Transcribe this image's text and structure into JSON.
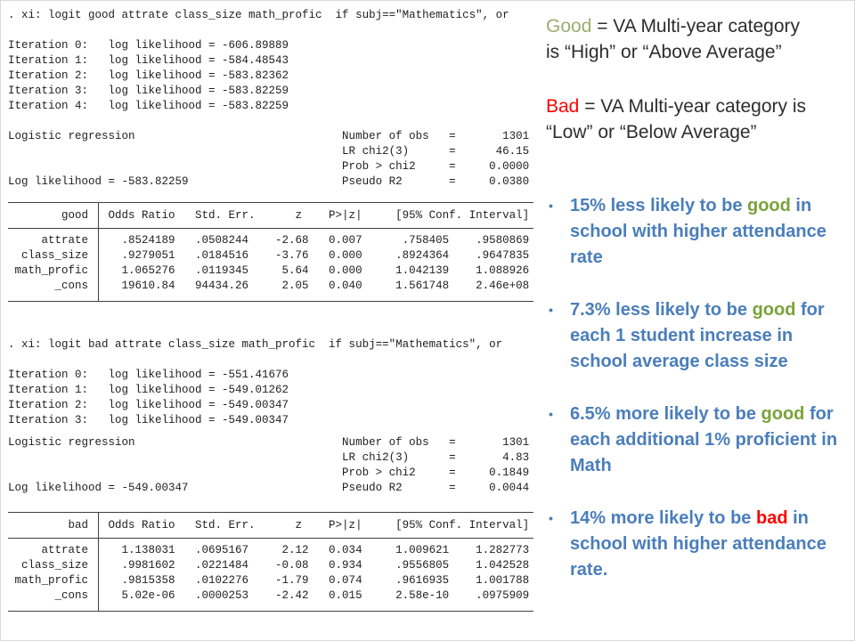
{
  "colors": {
    "blue": "#4a7ebb",
    "green_title": "#9bae6f",
    "green_bullet": "#7aa23a",
    "red": "#fe0000",
    "dark": "#2d2d2d",
    "mono_text": "#1f1f1f"
  },
  "stata": {
    "good_model": {
      "command": ". xi: logit good attrate class_size math_profic  if subj==\"Mathematics\", or",
      "iterations": [
        "Iteration 0:   log likelihood = -606.89889",
        "Iteration 1:   log likelihood = -584.48543",
        "Iteration 2:   log likelihood = -583.82362",
        "Iteration 3:   log likelihood = -583.82259",
        "Iteration 4:   log likelihood = -583.82259"
      ],
      "summary": [
        "Logistic regression                               Number of obs   =       1301",
        "                                                  LR chi2(3)      =      46.15",
        "                                                  Prob > chi2     =     0.0000",
        "Log likelihood = -583.82259                       Pseudo R2       =     0.0380"
      ],
      "table": {
        "header": "        good   Odds Ratio   Std. Err.      z    P>|z|     [95% Conf. Interval]",
        "rows": [
          "     attrate     .8524189   .0508244    -2.68   0.007      .758405    .9580869",
          "  class_size     .9279051   .0184516    -3.76   0.000     .8924364    .9647835",
          " math_profic     1.065276   .0119345     5.64   0.000     1.042139    1.088926",
          "       _cons     19610.84   94434.26     2.05   0.040     1.561748    2.46e+08"
        ]
      }
    },
    "bad_model": {
      "command": ". xi: logit bad attrate class_size math_profic  if subj==\"Mathematics\", or",
      "iterations": [
        "Iteration 0:   log likelihood = -551.41676",
        "Iteration 1:   log likelihood = -549.01262",
        "Iteration 2:   log likelihood = -549.00347",
        "Iteration 3:   log likelihood = -549.00347"
      ],
      "summary": [
        "Logistic regression                               Number of obs   =       1301",
        "                                                  LR chi2(3)      =       4.83",
        "                                                  Prob > chi2     =     0.1849",
        "Log likelihood = -549.00347                       Pseudo R2       =     0.0044"
      ],
      "table": {
        "header": "         bad   Odds Ratio   Std. Err.      z    P>|z|     [95% Conf. Interval]",
        "rows": [
          "     attrate     1.138031   .0695167     2.12   0.034     1.009621    1.282773",
          "  class_size     .9981602   .0221484    -0.08   0.934     .9556805    1.042528",
          " math_profic     .9815358   .0102276    -1.79   0.074     .9616935    1.001788",
          "       _cons     5.02e-06   .0000253    -2.42   0.015     2.58e-10    .0975909"
        ]
      }
    }
  },
  "legend": {
    "good_line1": [
      {
        "t": "Good",
        "c": "green_title"
      },
      {
        "t": " = VA Multi-year category",
        "c": "dark"
      }
    ],
    "good_line2": "is “High” or “Above Average”",
    "bad_line1": [
      {
        "t": "Bad",
        "c": "red"
      },
      {
        "t": " = VA Multi-year category is",
        "c": "dark"
      }
    ],
    "bad_line2": "“Low” or “Below Average”"
  },
  "bullets": {
    "marker": "•",
    "items": [
      {
        "segments": [
          {
            "t": "15% less likely to be ",
            "c": "blue"
          },
          {
            "t": "good",
            "c": "green_bullet"
          },
          {
            "t": " in school with higher attendance rate",
            "c": "blue"
          }
        ]
      },
      {
        "segments": [
          {
            "t": "7.3% less likely to be ",
            "c": "blue"
          },
          {
            "t": "good",
            "c": "green_bullet"
          },
          {
            "t": " for each 1 student increase in school average class size",
            "c": "blue"
          }
        ]
      },
      {
        "segments": [
          {
            "t": "6.5% more likely to be ",
            "c": "blue"
          },
          {
            "t": "good",
            "c": "green_bullet"
          },
          {
            "t": " for each additional 1% proficient in Math",
            "c": "blue"
          }
        ]
      },
      {
        "segments": [
          {
            "t": "14% more likely to be ",
            "c": "blue"
          },
          {
            "t": "bad",
            "c": "red"
          },
          {
            "t": " in school with higher attendance rate.",
            "c": "blue"
          }
        ]
      }
    ]
  }
}
